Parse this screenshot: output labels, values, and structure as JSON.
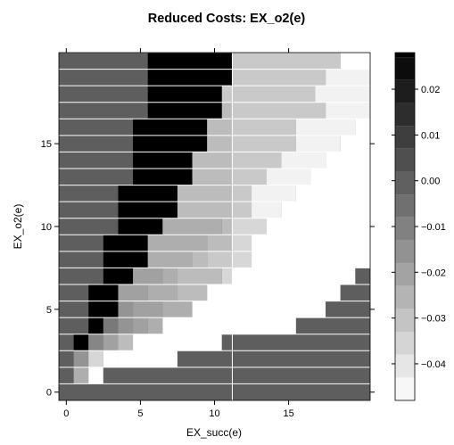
{
  "chart_data": {
    "type": "heatmap",
    "title": "Reduced Costs: EX_o2(e)",
    "xlabel": "EX_succ(e)",
    "ylabel": "EX_o2(e)",
    "xlim": [
      -0.5,
      20.5
    ],
    "ylim": [
      -0.5,
      20.5
    ],
    "x_ticks": [
      "0",
      "5",
      "10",
      "15"
    ],
    "x_tick_values": [
      0,
      5,
      10,
      15
    ],
    "y_ticks": [
      "0",
      "5",
      "10",
      "15"
    ],
    "y_tick_values": [
      0,
      5,
      10,
      15
    ],
    "colorbar": {
      "range": [
        -0.048,
        0.028
      ],
      "ticks": [
        "−0.04",
        "−0.03",
        "−0.02",
        "−0.01",
        "0.00",
        "0.01",
        "0.02"
      ],
      "tick_values": [
        -0.04,
        -0.03,
        -0.02,
        -0.01,
        0.0,
        0.01,
        0.02
      ]
    },
    "background_value": 0.0,
    "infeasible_value": -0.048,
    "rows": [
      {
        "y": 20,
        "segments": [
          [
            -0.5,
            5.5,
            0.0
          ],
          [
            5.5,
            11.2,
            0.028
          ],
          [
            11.2,
            18.5,
            -0.032
          ],
          [
            18.5,
            20.5,
            -0.048
          ]
        ]
      },
      {
        "y": 19,
        "segments": [
          [
            -0.5,
            5.5,
            0.0
          ],
          [
            5.5,
            11.2,
            0.028
          ],
          [
            11.2,
            17.5,
            -0.032
          ],
          [
            17.5,
            20.5,
            -0.044
          ]
        ]
      },
      {
        "y": 18,
        "segments": [
          [
            -0.5,
            5.5,
            0.0
          ],
          [
            5.5,
            10.5,
            0.028
          ],
          [
            10.5,
            16.8,
            -0.032
          ],
          [
            16.8,
            20.5,
            -0.044
          ]
        ]
      },
      {
        "y": 17,
        "segments": [
          [
            -0.5,
            5.5,
            0.0
          ],
          [
            5.5,
            10.5,
            0.028
          ],
          [
            10.5,
            11.2,
            -0.028
          ],
          [
            11.2,
            17.5,
            -0.032
          ],
          [
            17.5,
            20.5,
            -0.044
          ]
        ]
      },
      {
        "y": 16,
        "segments": [
          [
            -0.5,
            4.5,
            0.0
          ],
          [
            4.5,
            9.5,
            0.028
          ],
          [
            9.5,
            11.2,
            -0.028
          ],
          [
            11.2,
            15.5,
            -0.032
          ],
          [
            15.5,
            19.5,
            -0.044
          ],
          [
            19.5,
            20.5,
            -0.048
          ]
        ]
      },
      {
        "y": 15,
        "segments": [
          [
            -0.5,
            4.5,
            0.0
          ],
          [
            4.5,
            9.5,
            0.028
          ],
          [
            9.5,
            11.2,
            -0.028
          ],
          [
            11.2,
            15.5,
            -0.032
          ],
          [
            15.5,
            18.5,
            -0.044
          ],
          [
            18.5,
            20.5,
            -0.048
          ]
        ]
      },
      {
        "y": 14,
        "segments": [
          [
            -0.5,
            4.5,
            0.0
          ],
          [
            4.5,
            8.5,
            0.028
          ],
          [
            8.5,
            11.2,
            -0.028
          ],
          [
            11.2,
            14.5,
            -0.032
          ],
          [
            14.5,
            17.5,
            -0.044
          ],
          [
            17.5,
            20.5,
            -0.048
          ]
        ]
      },
      {
        "y": 13,
        "segments": [
          [
            -0.5,
            4.5,
            0.0
          ],
          [
            4.5,
            8.5,
            0.028
          ],
          [
            8.5,
            11.2,
            -0.028
          ],
          [
            11.2,
            13.5,
            -0.032
          ],
          [
            13.5,
            16.5,
            -0.044
          ],
          [
            16.5,
            20.5,
            -0.048
          ]
        ]
      },
      {
        "y": 12,
        "segments": [
          [
            -0.5,
            3.5,
            0.0
          ],
          [
            3.5,
            7.5,
            0.028
          ],
          [
            7.5,
            11.2,
            -0.028
          ],
          [
            11.2,
            12.5,
            -0.032
          ],
          [
            12.5,
            15.5,
            -0.044
          ],
          [
            15.5,
            20.5,
            -0.048
          ]
        ]
      },
      {
        "y": 11,
        "segments": [
          [
            -0.5,
            3.5,
            0.0
          ],
          [
            3.5,
            7.5,
            0.028
          ],
          [
            7.5,
            11.2,
            -0.028
          ],
          [
            11.2,
            12.5,
            -0.032
          ],
          [
            12.5,
            14.5,
            -0.044
          ],
          [
            14.5,
            20.5,
            -0.048
          ]
        ]
      },
      {
        "y": 10,
        "segments": [
          [
            -0.5,
            3.5,
            0.0
          ],
          [
            3.5,
            6.5,
            0.028
          ],
          [
            6.5,
            10.5,
            -0.024
          ],
          [
            10.5,
            11.2,
            -0.028
          ],
          [
            11.2,
            13.5,
            -0.036
          ],
          [
            13.5,
            20.5,
            -0.048
          ]
        ]
      },
      {
        "y": 9,
        "segments": [
          [
            -0.5,
            2.5,
            0.0
          ],
          [
            2.5,
            5.5,
            0.028
          ],
          [
            5.5,
            9.5,
            -0.024
          ],
          [
            9.5,
            11.2,
            -0.028
          ],
          [
            11.2,
            12.5,
            -0.036
          ],
          [
            12.5,
            20.5,
            -0.048
          ]
        ]
      },
      {
        "y": 8,
        "segments": [
          [
            -0.5,
            2.5,
            0.0
          ],
          [
            2.5,
            5.5,
            0.028
          ],
          [
            5.5,
            8.5,
            -0.024
          ],
          [
            8.5,
            9.5,
            -0.028
          ],
          [
            9.5,
            11.2,
            -0.032
          ],
          [
            11.2,
            12.5,
            -0.036
          ],
          [
            12.5,
            20.5,
            -0.048
          ]
        ]
      },
      {
        "y": 7,
        "segments": [
          [
            -0.5,
            2.5,
            0.0
          ],
          [
            2.5,
            4.5,
            0.028
          ],
          [
            4.5,
            6.5,
            -0.02
          ],
          [
            6.5,
            7.5,
            -0.024
          ],
          [
            7.5,
            10.5,
            -0.028
          ],
          [
            10.5,
            11.2,
            -0.036
          ],
          [
            11.2,
            19.5,
            -0.048
          ],
          [
            19.5,
            20.5,
            0.0
          ]
        ]
      },
      {
        "y": 6,
        "segments": [
          [
            -0.5,
            1.5,
            0.0
          ],
          [
            1.5,
            3.5,
            0.028
          ],
          [
            3.5,
            5.5,
            -0.02
          ],
          [
            5.5,
            7.5,
            -0.024
          ],
          [
            7.5,
            9.5,
            -0.028
          ],
          [
            9.5,
            18.5,
            -0.048
          ],
          [
            18.5,
            20.5,
            0.0
          ]
        ]
      },
      {
        "y": 5,
        "segments": [
          [
            -0.5,
            1.5,
            0.0
          ],
          [
            1.5,
            3.5,
            0.028
          ],
          [
            3.5,
            4.5,
            -0.016
          ],
          [
            4.5,
            6.5,
            -0.02
          ],
          [
            6.5,
            8.5,
            -0.024
          ],
          [
            8.5,
            17.5,
            -0.048
          ],
          [
            17.5,
            20.5,
            0.0
          ]
        ]
      },
      {
        "y": 4,
        "segments": [
          [
            -0.5,
            1.5,
            0.0
          ],
          [
            1.5,
            2.5,
            0.028
          ],
          [
            2.5,
            3.5,
            -0.008
          ],
          [
            3.5,
            4.5,
            -0.016
          ],
          [
            4.5,
            5.5,
            -0.02
          ],
          [
            5.5,
            6.5,
            -0.024
          ],
          [
            6.5,
            15.5,
            -0.048
          ],
          [
            15.5,
            20.5,
            0.0
          ]
        ]
      },
      {
        "y": 3,
        "segments": [
          [
            -0.5,
            0.5,
            0.0
          ],
          [
            0.5,
            1.5,
            0.028
          ],
          [
            1.5,
            2.5,
            -0.012
          ],
          [
            2.5,
            3.5,
            -0.02
          ],
          [
            3.5,
            4.5,
            -0.028
          ],
          [
            4.5,
            10.5,
            -0.048
          ],
          [
            10.5,
            20.5,
            0.0
          ]
        ]
      },
      {
        "y": 2,
        "segments": [
          [
            -0.5,
            0.5,
            0.0
          ],
          [
            0.5,
            1.5,
            -0.016
          ],
          [
            1.5,
            2.5,
            -0.036
          ],
          [
            2.5,
            3.5,
            -0.048
          ],
          [
            3.5,
            7.5,
            -0.048
          ],
          [
            7.5,
            20.5,
            0.0
          ]
        ]
      },
      {
        "y": 1,
        "segments": [
          [
            -0.5,
            0.5,
            0.0
          ],
          [
            0.5,
            1.5,
            -0.024
          ],
          [
            1.5,
            2.5,
            -0.048
          ],
          [
            2.5,
            20.5,
            0.0
          ]
        ]
      },
      {
        "y": 0,
        "segments": [
          [
            -0.5,
            20.5,
            0.0
          ]
        ]
      }
    ]
  }
}
